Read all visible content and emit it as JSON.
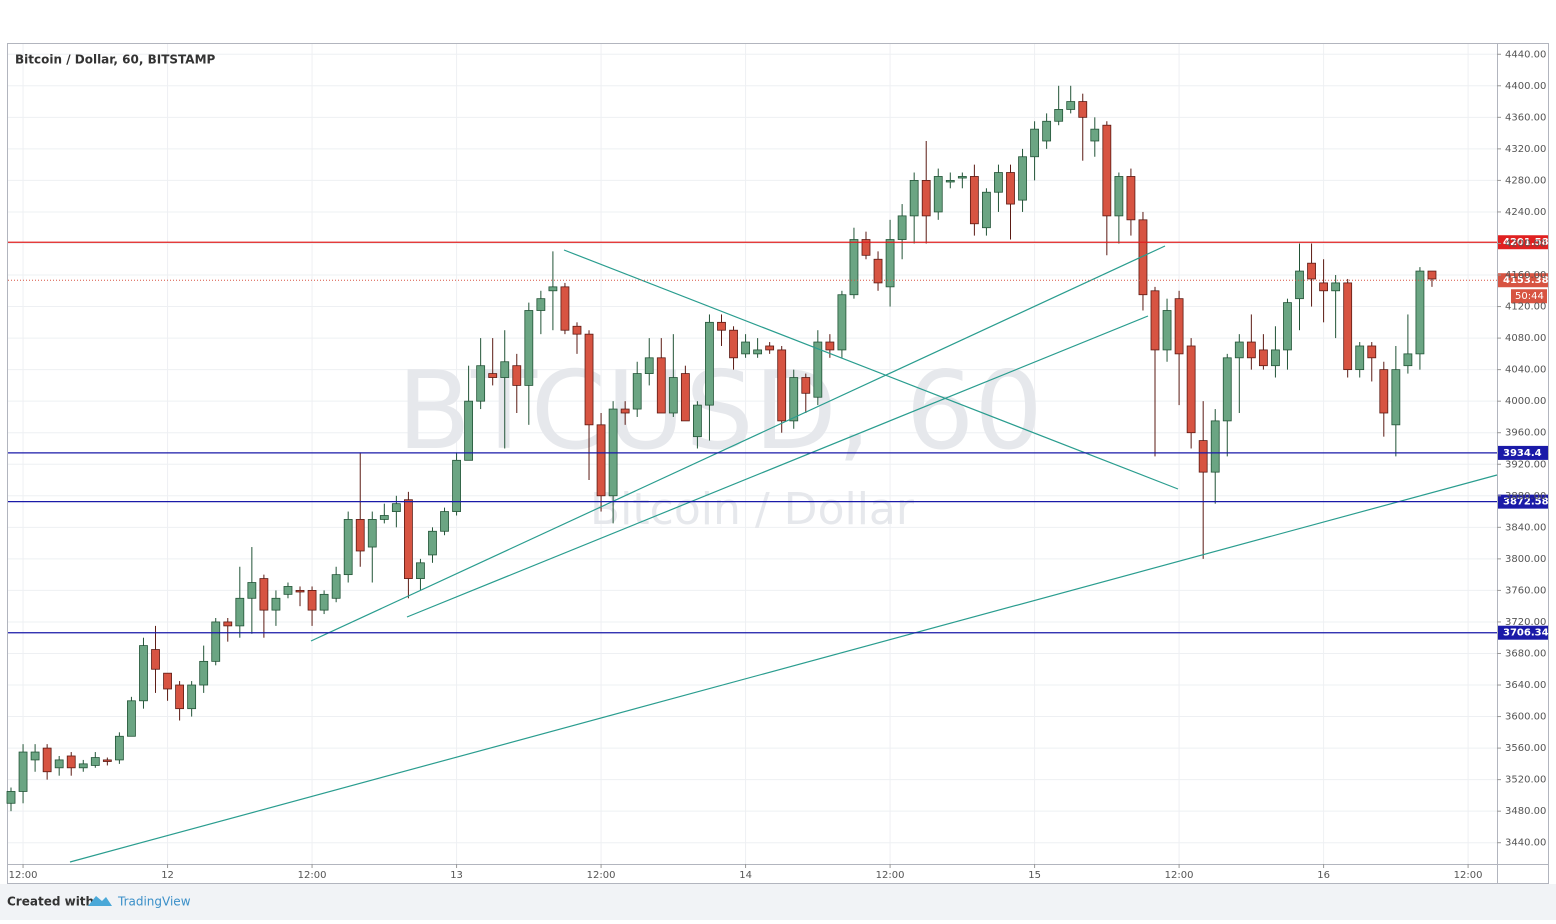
{
  "chart_data": {
    "type": "candlestick",
    "title": "Bitcoin / Dollar, 60, BITSTAMP",
    "watermark": "BTCUSD, 60",
    "watermark_sub": "Bitcoin / Dollar",
    "footer_text": "Created with",
    "footer_brand": "TradingView",
    "up_color": "#6ba583",
    "down_color": "#d75442",
    "open": [
      3490,
      3505,
      3545,
      3560,
      3535,
      3550,
      3535,
      3538,
      3545,
      3545,
      3575,
      3620,
      3685,
      3655,
      3640,
      3610,
      3640,
      3670,
      3720,
      3715,
      3750,
      3775,
      3735,
      3755,
      3760,
      3760,
      3735,
      3750,
      3780,
      3850,
      3815,
      3850,
      3860,
      3875,
      3775,
      3805,
      3835,
      3860,
      3925,
      4000,
      4035,
      4030,
      4045,
      4020,
      4115,
      4140,
      4145,
      4095,
      4085,
      3970,
      3880,
      3990,
      3990,
      4035,
      4055,
      3985,
      4035,
      3955,
      3995,
      4100,
      4090,
      4060,
      4060,
      4070,
      4065,
      3975,
      4030,
      4005,
      4075,
      4065,
      4135,
      4205,
      4180,
      4145,
      4205,
      4235,
      4280,
      4240,
      4278,
      4283,
      4285,
      4220,
      4265,
      4290,
      4255,
      4310,
      4330,
      4355,
      4370,
      4380,
      4330,
      4350,
      4235,
      4285,
      4230,
      4140,
      4065,
      4130,
      4070,
      3950,
      3910,
      3975,
      4055,
      4075,
      4065,
      4045,
      4065,
      4130,
      4175,
      4150,
      4140,
      4150,
      4040,
      4070,
      4040,
      3970,
      4045,
      4060,
      4165
    ],
    "high": [
      3510,
      3565,
      3565,
      3565,
      3550,
      3555,
      3545,
      3555,
      3548,
      3580,
      3625,
      3700,
      3715,
      3650,
      3645,
      3645,
      3690,
      3725,
      3725,
      3790,
      3815,
      3780,
      3760,
      3770,
      3765,
      3765,
      3760,
      3790,
      3860,
      3935,
      3860,
      3870,
      3880,
      3885,
      3800,
      3840,
      3865,
      3935,
      4045,
      4080,
      4080,
      4090,
      4060,
      4125,
      4140,
      4190,
      4150,
      4100,
      4090,
      3985,
      4000,
      4000,
      4050,
      4080,
      4080,
      4085,
      4045,
      4000,
      4110,
      4110,
      4095,
      4085,
      4080,
      4075,
      4070,
      4040,
      4035,
      4090,
      4085,
      4140,
      4220,
      4215,
      4190,
      4230,
      4250,
      4290,
      4330,
      4295,
      4290,
      4290,
      4300,
      4270,
      4300,
      4300,
      4320,
      4355,
      4365,
      4400,
      4400,
      4390,
      4360,
      4355,
      4290,
      4295,
      4240,
      4145,
      4130,
      4140,
      4080,
      4000,
      3990,
      4060,
      4085,
      4110,
      4085,
      4095,
      4130,
      4200,
      4200,
      4180,
      4160,
      4155,
      4075,
      4075,
      4050,
      4070,
      4110,
      4170,
      4165
    ],
    "low": [
      3480,
      3490,
      3530,
      3520,
      3525,
      3525,
      3530,
      3535,
      3538,
      3540,
      3575,
      3610,
      3630,
      3620,
      3595,
      3600,
      3630,
      3665,
      3695,
      3700,
      3705,
      3700,
      3715,
      3750,
      3740,
      3715,
      3730,
      3745,
      3770,
      3790,
      3770,
      3845,
      3840,
      3750,
      3760,
      3795,
      3830,
      3855,
      3925,
      3990,
      4020,
      3940,
      3985,
      3970,
      4085,
      4090,
      4085,
      4060,
      3900,
      3860,
      3845,
      3970,
      3980,
      4020,
      3985,
      3980,
      3975,
      3940,
      3950,
      4070,
      4040,
      4055,
      4055,
      4060,
      3960,
      3965,
      3985,
      3995,
      4055,
      4055,
      4130,
      4180,
      4140,
      4120,
      4180,
      4200,
      4200,
      4230,
      4270,
      4270,
      4210,
      4210,
      4240,
      4205,
      4240,
      4280,
      4320,
      4350,
      4365,
      4305,
      4310,
      4185,
      4200,
      4210,
      4115,
      3930,
      4050,
      3995,
      3940,
      3800,
      3870,
      3930,
      3985,
      4040,
      4040,
      4030,
      4040,
      4090,
      4120,
      4100,
      4080,
      4030,
      4030,
      4025,
      3955,
      3930,
      4035,
      4040,
      4145
    ],
    "close": [
      3505,
      3555,
      3555,
      3530,
      3545,
      3535,
      3540,
      3548,
      3543,
      3575,
      3620,
      3690,
      3660,
      3635,
      3610,
      3640,
      3670,
      3720,
      3715,
      3750,
      3770,
      3735,
      3750,
      3765,
      3758,
      3735,
      3755,
      3780,
      3850,
      3810,
      3850,
      3855,
      3870,
      3775,
      3795,
      3835,
      3860,
      3925,
      4000,
      4045,
      4030,
      4050,
      4020,
      4115,
      4130,
      4145,
      4090,
      4085,
      3970,
      3880,
      3990,
      3985,
      4035,
      4055,
      3985,
      4030,
      3975,
      3995,
      4100,
      4090,
      4055,
      4075,
      4065,
      4065,
      3975,
      4030,
      4010,
      4075,
      4065,
      4135,
      4205,
      4185,
      4150,
      4205,
      4235,
      4280,
      4235,
      4285,
      4280,
      4285,
      4225,
      4265,
      4290,
      4250,
      4310,
      4345,
      4355,
      4370,
      4380,
      4360,
      4345,
      4235,
      4285,
      4230,
      4135,
      4065,
      4115,
      4060,
      3960,
      3910,
      3975,
      4055,
      4075,
      4055,
      4045,
      4065,
      4125,
      4165,
      4155,
      4140,
      4150,
      4040,
      4070,
      4055,
      3985,
      4040,
      4060,
      4165,
      4155
    ],
    "xlim": [
      -0.25,
      123.4
    ],
    "xticks": [
      {
        "value": 1,
        "label": "12:00"
      },
      {
        "value": 13,
        "label": "12"
      },
      {
        "value": 25,
        "label": "12:00"
      },
      {
        "value": 37,
        "label": "13"
      },
      {
        "value": 49,
        "label": "12:00"
      },
      {
        "value": 61,
        "label": "14"
      },
      {
        "value": 73,
        "label": "12:00"
      },
      {
        "value": 85,
        "label": "15"
      },
      {
        "value": 97,
        "label": "12:00"
      },
      {
        "value": 109,
        "label": "16"
      },
      {
        "value": 121,
        "label": "12:00"
      }
    ],
    "ylim": [
      3413,
      4453
    ],
    "yticks": [
      {
        "value": 3440,
        "label": "3440.00"
      },
      {
        "value": 3480,
        "label": "3480.00"
      },
      {
        "value": 3520,
        "label": "3520.00"
      },
      {
        "value": 3560,
        "label": "3560.00"
      },
      {
        "value": 3600,
        "label": "3600.00"
      },
      {
        "value": 3640,
        "label": "3640.00"
      },
      {
        "value": 3680,
        "label": "3680.00"
      },
      {
        "value": 3720,
        "label": "3720.00"
      },
      {
        "value": 3760,
        "label": "3760.00"
      },
      {
        "value": 3800,
        "label": "3800.00"
      },
      {
        "value": 3840,
        "label": "3840.00"
      },
      {
        "value": 3880,
        "label": "3880.00"
      },
      {
        "value": 3920,
        "label": "3920.00"
      },
      {
        "value": 3960,
        "label": "3960.00"
      },
      {
        "value": 4000,
        "label": "4000.00"
      },
      {
        "value": 4040,
        "label": "4040.00"
      },
      {
        "value": 4080,
        "label": "4080.00"
      },
      {
        "value": 4120,
        "label": "4120.00"
      },
      {
        "value": 4160,
        "label": "4160.00"
      },
      {
        "value": 4200,
        "label": "4200.00"
      },
      {
        "value": 4240,
        "label": "4240.00"
      },
      {
        "value": 4280,
        "label": "4280.00"
      },
      {
        "value": 4320,
        "label": "4320.00"
      },
      {
        "value": 4360,
        "label": "4360.00"
      },
      {
        "value": 4400,
        "label": "4400.00"
      },
      {
        "value": 4440,
        "label": "4440.00"
      }
    ],
    "grid": true,
    "levels": [
      {
        "value": 4201.58,
        "color": "#e02020"
      },
      {
        "value": 3934.4,
        "color": "#1a1aa8"
      },
      {
        "value": 3872.58,
        "color": "#1a1aa8"
      },
      {
        "value": 3706.34,
        "color": "#1a1aa8"
      }
    ],
    "last_price": 4153.38,
    "last_color": "#d75442",
    "countdown": "50:44"
  }
}
